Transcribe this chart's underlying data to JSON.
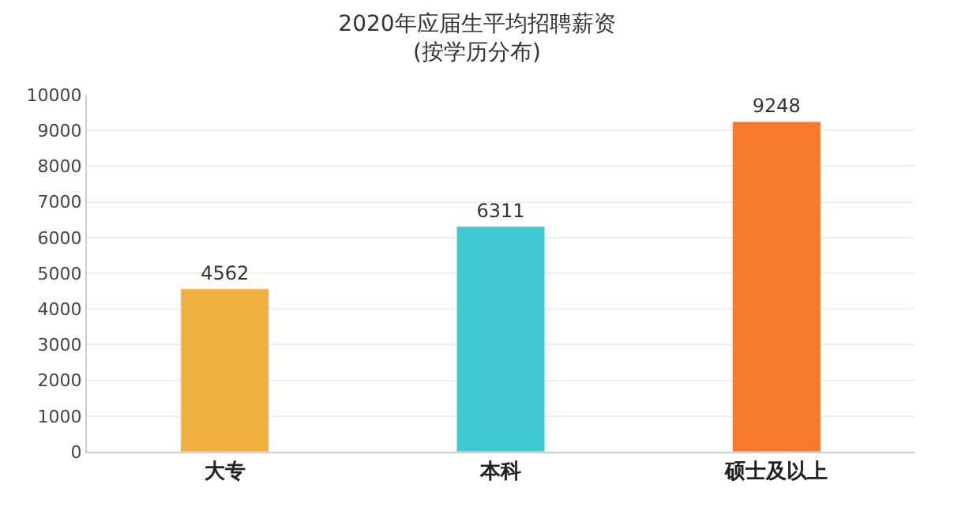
{
  "chart_data": {
    "type": "bar",
    "title": "2020年应届生平均招聘薪资",
    "subtitle": "(按学历分布)",
    "categories": [
      "大专",
      "本科",
      "硕士及以上"
    ],
    "values": [
      4562,
      6311,
      9248
    ],
    "colors": [
      "#f2b13f",
      "#3fcad3",
      "#f6792c"
    ],
    "ylim": [
      0,
      10000
    ],
    "yticks": [
      0,
      1000,
      2000,
      3000,
      4000,
      5000,
      6000,
      7000,
      8000,
      9000,
      10000
    ],
    "grid": "y",
    "data_labels": true
  }
}
